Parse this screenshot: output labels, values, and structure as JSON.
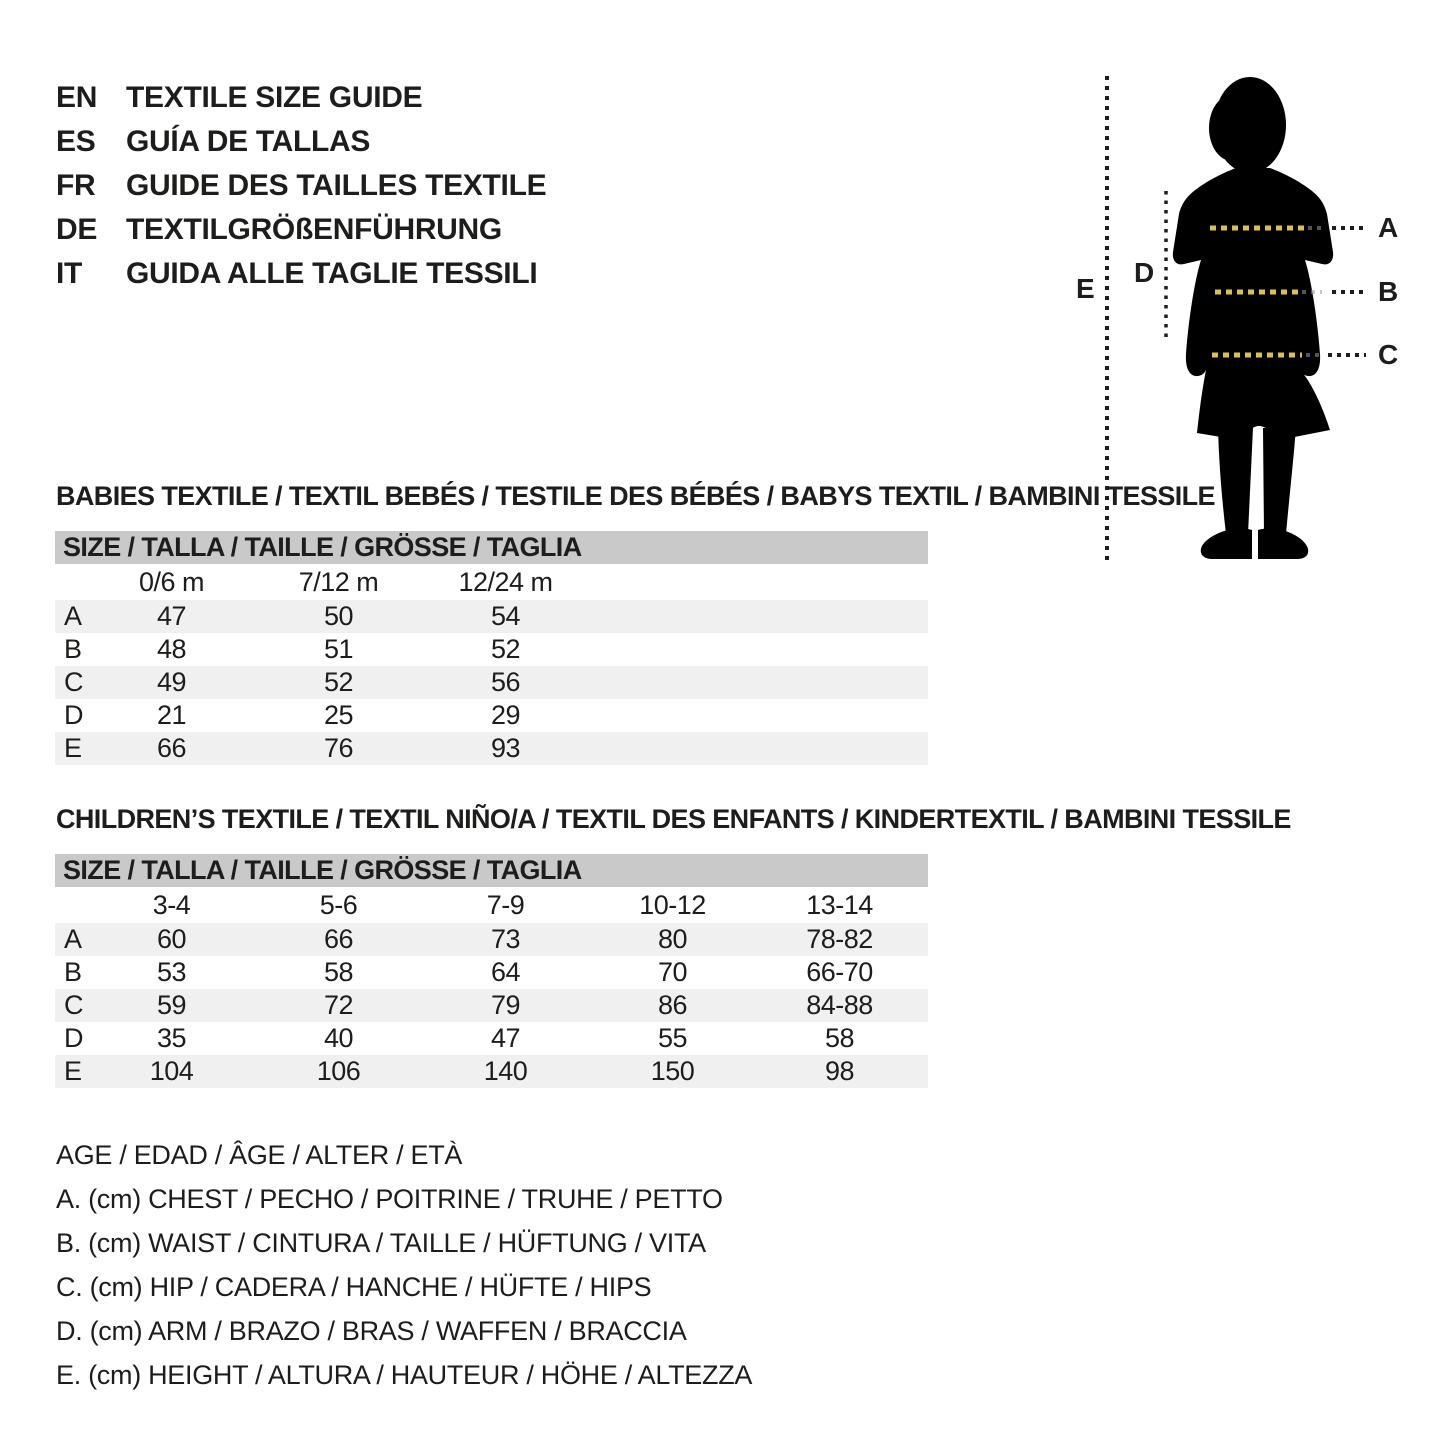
{
  "languages": [
    {
      "code": "EN",
      "text": "TEXTILE SIZE GUIDE"
    },
    {
      "code": "ES",
      "text": "GUÍA DE TALLAS"
    },
    {
      "code": "FR",
      "text": "GUIDE DES TAILLES TEXTILE"
    },
    {
      "code": "DE",
      "text": "TEXTILGRÖßENFÜHRUNG"
    },
    {
      "code": "IT",
      "text": "GUIDA ALLE TAGLIE TESSILI"
    }
  ],
  "figure": {
    "measure_labels": [
      "A",
      "B",
      "C",
      "D",
      "E"
    ],
    "dash_color": "#dcc244",
    "line_color": "#1d1d1b",
    "silhouette_color": "#000000"
  },
  "tables": [
    {
      "id": "babies",
      "title": "BABIES TEXTILE / TEXTIL BEBÉS / TESTILE DES BÉBÉS / BABYS TEXTIL / BAMBINI TESSILE",
      "size_header": "SIZE / TALLA / TAILLE / GRÖSSE / TAGLIA",
      "columns": [
        "0/6 m",
        "7/12 m",
        "12/24 m"
      ],
      "rows": [
        [
          "A",
          "47",
          "50",
          "54"
        ],
        [
          "B",
          "48",
          "51",
          "52"
        ],
        [
          "C",
          "49",
          "52",
          "56"
        ],
        [
          "D",
          "21",
          "25",
          "29"
        ],
        [
          "E",
          "66",
          "76",
          "93"
        ]
      ]
    },
    {
      "id": "children",
      "title": "CHILDREN’S TEXTILE / TEXTIL NIÑO/A / TEXTIL DES ENFANTS / KINDERTEXTIL / BAMBINI TESSILE",
      "size_header": "SIZE / TALLA / TAILLE / GRÖSSE / TAGLIA",
      "columns": [
        "3-4",
        "5-6",
        "7-9",
        "10-12",
        "13-14"
      ],
      "rows": [
        [
          "A",
          "60",
          "66",
          "73",
          "80",
          "78-82"
        ],
        [
          "B",
          "53",
          "58",
          "64",
          "70",
          "66-70"
        ],
        [
          "C",
          "59",
          "72",
          "79",
          "86",
          "84-88"
        ],
        [
          "D",
          "35",
          "40",
          "47",
          "55",
          "58"
        ],
        [
          "E",
          "104",
          "106",
          "140",
          "150",
          "98"
        ]
      ]
    }
  ],
  "legend": [
    "AGE / EDAD / ÂGE / ALTER / ETÀ",
    "A. (cm) CHEST / PECHO / POITRINE / TRUHE / PETTO",
    "B. (cm) WAIST / CINTURA / TAILLE / HÜFTUNG / VITA",
    "C. (cm) HIP / CADERA / HANCHE / HÜFTE / HIPS",
    "D. (cm) ARM / BRAZO / BRAS / WAFFEN / BRACCIA",
    "E. (cm) HEIGHT / ALTURA / HAUTEUR / HÖHE / ALTEZZA"
  ]
}
